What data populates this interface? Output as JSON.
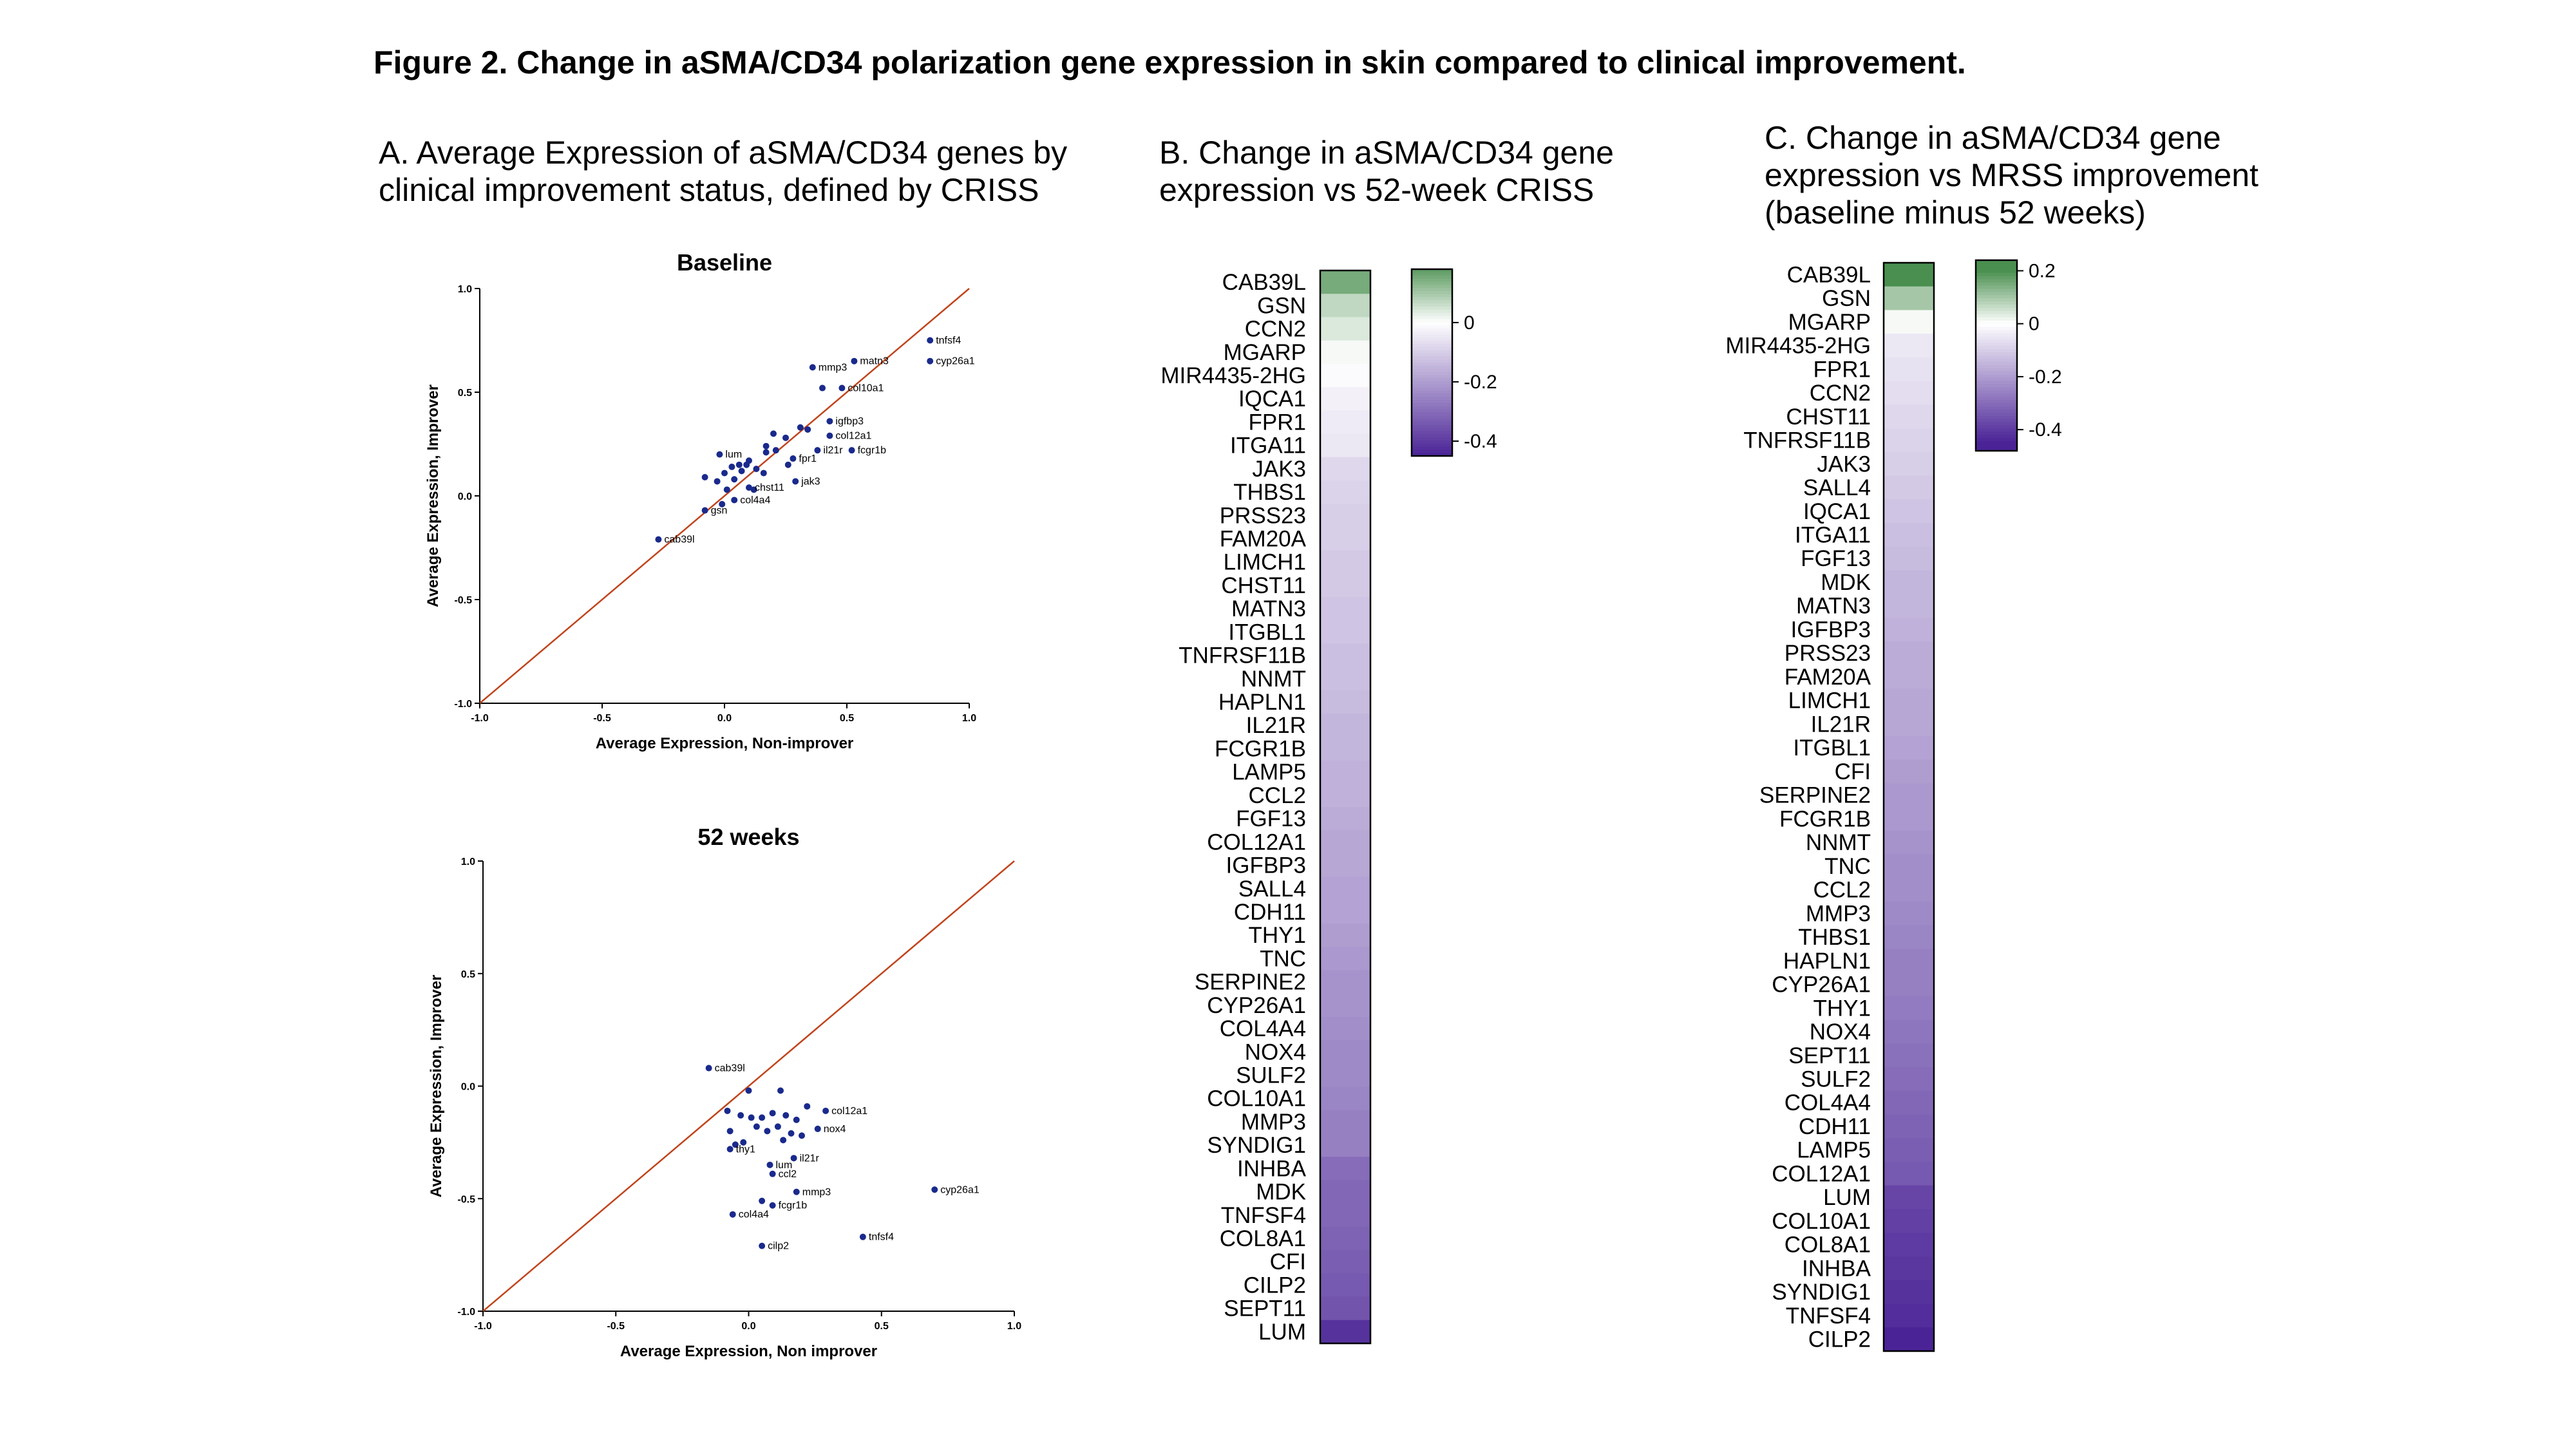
{
  "figure_title": "Figure 2. Change in aSMA/CD34 polarization gene expression in skin compared to clinical improvement.",
  "panels": {
    "A": {
      "title": "A. Average Expression of aSMA/CD34 genes by\nclinical improvement status, defined by CRISS"
    },
    "B": {
      "title": "B. Change in aSMA/CD34 gene\nexpression vs 52-week CRISS"
    },
    "C": {
      "title": "C. Change in aSMA/CD34 gene\nexpression vs MRSS improvement\n(baseline minus 52 weeks)"
    }
  },
  "colors": {
    "point": "#1a2a8c",
    "identity_line": "#c0441c",
    "low": "#4a2396",
    "mid": "#ffffff",
    "high": "#4a8f4f"
  },
  "chart_data": [
    {
      "type": "scatter",
      "title": "Baseline",
      "xlabel": "Average Expression, Non-improver",
      "ylabel": "Average Expression, Improver",
      "xlim": [
        -1.0,
        1.0
      ],
      "ylim": [
        -1.0,
        1.0
      ],
      "xticks": [
        "-1.0",
        "-0.5",
        "0.0",
        "0.5",
        "1.0"
      ],
      "yticks": [
        "-1.0",
        "-0.5",
        "0.0",
        "0.5",
        "1.0"
      ],
      "identity_line": true,
      "labeled_points": [
        {
          "x": 0.84,
          "y": 0.75,
          "label": "tnfsf4"
        },
        {
          "x": 0.84,
          "y": 0.65,
          "label": "cyp26a1"
        },
        {
          "x": 0.53,
          "y": 0.65,
          "label": "matn3"
        },
        {
          "x": 0.36,
          "y": 0.62,
          "label": "mmp3"
        },
        {
          "x": 0.48,
          "y": 0.52,
          "label": "col10a1"
        },
        {
          "x": 0.43,
          "y": 0.36,
          "label": "igfbp3"
        },
        {
          "x": 0.43,
          "y": 0.29,
          "label": "col12a1"
        },
        {
          "x": 0.38,
          "y": 0.22,
          "label": "il21r"
        },
        {
          "x": 0.52,
          "y": 0.22,
          "label": "fcgr1b"
        },
        {
          "x": 0.28,
          "y": 0.18,
          "label": "fpr1"
        },
        {
          "x": -0.02,
          "y": 0.2,
          "label": "lum"
        },
        {
          "x": 0.29,
          "y": 0.07,
          "label": "jak3"
        },
        {
          "x": 0.1,
          "y": 0.04,
          "label": "chst11"
        },
        {
          "x": 0.04,
          "y": -0.02,
          "label": "col4a4"
        },
        {
          "x": -0.08,
          "y": -0.07,
          "label": "gsn"
        },
        {
          "x": -0.27,
          "y": -0.21,
          "label": "cab39l"
        }
      ],
      "points": [
        {
          "x": 0.4,
          "y": 0.52
        },
        {
          "x": 0.34,
          "y": 0.32
        },
        {
          "x": 0.31,
          "y": 0.33
        },
        {
          "x": 0.25,
          "y": 0.28
        },
        {
          "x": 0.17,
          "y": 0.24
        },
        {
          "x": 0.17,
          "y": 0.21
        },
        {
          "x": 0.1,
          "y": 0.17
        },
        {
          "x": 0.09,
          "y": 0.15
        },
        {
          "x": 0.13,
          "y": 0.13
        },
        {
          "x": 0.16,
          "y": 0.11
        },
        {
          "x": 0.07,
          "y": 0.12
        },
        {
          "x": 0.03,
          "y": 0.14
        },
        {
          "x": 0.0,
          "y": 0.11
        },
        {
          "x": 0.04,
          "y": 0.08
        },
        {
          "x": -0.03,
          "y": 0.07
        },
        {
          "x": -0.08,
          "y": 0.09
        },
        {
          "x": 0.01,
          "y": 0.03
        },
        {
          "x": -0.01,
          "y": -0.04
        },
        {
          "x": 0.06,
          "y": 0.15
        },
        {
          "x": 0.21,
          "y": 0.22
        },
        {
          "x": 0.26,
          "y": 0.15
        },
        {
          "x": 0.2,
          "y": 0.3
        },
        {
          "x": 0.12,
          "y": 0.03
        }
      ]
    },
    {
      "type": "scatter",
      "title": "52 weeks",
      "xlabel": "Average Expression, Non improver",
      "ylabel": "Average Expression, Improver",
      "xlim": [
        -1.0,
        1.0
      ],
      "ylim": [
        -1.0,
        1.0
      ],
      "xticks": [
        "-1.0",
        "-0.5",
        "0.0",
        "0.5",
        "1.0"
      ],
      "yticks": [
        "-1.0",
        "-0.5",
        "0.0",
        "0.5",
        "1.0"
      ],
      "identity_line": true,
      "labeled_points": [
        {
          "x": -0.15,
          "y": 0.08,
          "label": "cab39l"
        },
        {
          "x": 0.29,
          "y": -0.11,
          "label": "col12a1"
        },
        {
          "x": 0.26,
          "y": -0.19,
          "label": "nox4"
        },
        {
          "x": 0.17,
          "y": -0.32,
          "label": "il21r"
        },
        {
          "x": -0.07,
          "y": -0.28,
          "label": "thy1"
        },
        {
          "x": 0.08,
          "y": -0.35,
          "label": "lum"
        },
        {
          "x": 0.09,
          "y": -0.39,
          "label": "ccl2"
        },
        {
          "x": 0.18,
          "y": -0.47,
          "label": "mmp3"
        },
        {
          "x": 0.7,
          "y": -0.46,
          "label": "cyp26a1"
        },
        {
          "x": 0.09,
          "y": -0.53,
          "label": "fcgr1b"
        },
        {
          "x": -0.06,
          "y": -0.57,
          "label": "col4a4"
        },
        {
          "x": 0.43,
          "y": -0.67,
          "label": "tnfsf4"
        },
        {
          "x": 0.05,
          "y": -0.71,
          "label": "cilp2"
        }
      ],
      "points": [
        {
          "x": 0.0,
          "y": -0.02
        },
        {
          "x": 0.12,
          "y": -0.02
        },
        {
          "x": -0.08,
          "y": -0.11
        },
        {
          "x": -0.03,
          "y": -0.13
        },
        {
          "x": 0.01,
          "y": -0.14
        },
        {
          "x": 0.05,
          "y": -0.14
        },
        {
          "x": 0.09,
          "y": -0.12
        },
        {
          "x": 0.14,
          "y": -0.13
        },
        {
          "x": 0.18,
          "y": -0.15
        },
        {
          "x": 0.22,
          "y": -0.09
        },
        {
          "x": -0.07,
          "y": -0.2
        },
        {
          "x": 0.03,
          "y": -0.18
        },
        {
          "x": 0.07,
          "y": -0.2
        },
        {
          "x": 0.11,
          "y": -0.18
        },
        {
          "x": 0.16,
          "y": -0.21
        },
        {
          "x": 0.2,
          "y": -0.22
        },
        {
          "x": -0.02,
          "y": -0.25
        },
        {
          "x": -0.05,
          "y": -0.26
        },
        {
          "x": 0.05,
          "y": -0.51
        },
        {
          "x": 0.13,
          "y": -0.24
        }
      ]
    },
    {
      "type": "heatmap",
      "colorbar": {
        "ticks": [
          "0",
          "-0.2",
          "-0.4"
        ],
        "tick_values": [
          0,
          -0.2,
          -0.4
        ],
        "range": [
          -0.45,
          0.18
        ]
      },
      "rows": [
        {
          "gene": "CAB39L",
          "value": 0.15
        },
        {
          "gene": "GSN",
          "value": 0.07
        },
        {
          "gene": "CCN2",
          "value": 0.04
        },
        {
          "gene": "MGARP",
          "value": 0.01
        },
        {
          "gene": "MIR4435-2HG",
          "value": -0.01
        },
        {
          "gene": "IQCA1",
          "value": -0.03
        },
        {
          "gene": "FPR1",
          "value": -0.04
        },
        {
          "gene": "ITGA11",
          "value": -0.05
        },
        {
          "gene": "JAK3",
          "value": -0.08
        },
        {
          "gene": "THBS1",
          "value": -0.09
        },
        {
          "gene": "PRSS23",
          "value": -0.1
        },
        {
          "gene": "FAM20A",
          "value": -0.1
        },
        {
          "gene": "LIMCH1",
          "value": -0.11
        },
        {
          "gene": "CHST11",
          "value": -0.11
        },
        {
          "gene": "MATN3",
          "value": -0.12
        },
        {
          "gene": "ITGBL1",
          "value": -0.12
        },
        {
          "gene": "TNFRSF11B",
          "value": -0.13
        },
        {
          "gene": "NNMT",
          "value": -0.13
        },
        {
          "gene": "HAPLN1",
          "value": -0.14
        },
        {
          "gene": "IL21R",
          "value": -0.15
        },
        {
          "gene": "FCGR1B",
          "value": -0.15
        },
        {
          "gene": "LAMP5",
          "value": -0.16
        },
        {
          "gene": "CCL2",
          "value": -0.16
        },
        {
          "gene": "FGF13",
          "value": -0.17
        },
        {
          "gene": "COL12A1",
          "value": -0.18
        },
        {
          "gene": "IGFBP3",
          "value": -0.18
        },
        {
          "gene": "SALL4",
          "value": -0.19
        },
        {
          "gene": "CDH11",
          "value": -0.19
        },
        {
          "gene": "THY1",
          "value": -0.2
        },
        {
          "gene": "TNC",
          "value": -0.21
        },
        {
          "gene": "SERPINE2",
          "value": -0.22
        },
        {
          "gene": "CYP26A1",
          "value": -0.22
        },
        {
          "gene": "COL4A4",
          "value": -0.23
        },
        {
          "gene": "NOX4",
          "value": -0.24
        },
        {
          "gene": "SULF2",
          "value": -0.24
        },
        {
          "gene": "COL10A1",
          "value": -0.25
        },
        {
          "gene": "MMP3",
          "value": -0.26
        },
        {
          "gene": "SYNDIG1",
          "value": -0.26
        },
        {
          "gene": "INHBA",
          "value": -0.3
        },
        {
          "gene": "MDK",
          "value": -0.31
        },
        {
          "gene": "TNFSF4",
          "value": -0.31
        },
        {
          "gene": "COL8A1",
          "value": -0.32
        },
        {
          "gene": "CFI",
          "value": -0.33
        },
        {
          "gene": "CILP2",
          "value": -0.34
        },
        {
          "gene": "SEPT11",
          "value": -0.35
        },
        {
          "gene": "LUM",
          "value": -0.42
        }
      ]
    },
    {
      "type": "heatmap",
      "colorbar": {
        "ticks": [
          "0.2",
          "0",
          "-0.2",
          "-0.4"
        ],
        "tick_values": [
          0.2,
          0,
          -0.2,
          -0.4
        ],
        "range": [
          -0.48,
          0.24
        ]
      },
      "rows": [
        {
          "gene": "CAB39L",
          "value": 0.22
        },
        {
          "gene": "GSN",
          "value": 0.1
        },
        {
          "gene": "MGARP",
          "value": 0.01
        },
        {
          "gene": "MIR4435-2HG",
          "value": -0.05
        },
        {
          "gene": "FPR1",
          "value": -0.06
        },
        {
          "gene": "CCN2",
          "value": -0.07
        },
        {
          "gene": "CHST11",
          "value": -0.08
        },
        {
          "gene": "TNFRSF11B",
          "value": -0.09
        },
        {
          "gene": "JAK3",
          "value": -0.1
        },
        {
          "gene": "SALL4",
          "value": -0.11
        },
        {
          "gene": "IQCA1",
          "value": -0.12
        },
        {
          "gene": "ITGA11",
          "value": -0.13
        },
        {
          "gene": "FGF13",
          "value": -0.14
        },
        {
          "gene": "MDK",
          "value": -0.15
        },
        {
          "gene": "MATN3",
          "value": -0.15
        },
        {
          "gene": "IGFBP3",
          "value": -0.16
        },
        {
          "gene": "PRSS23",
          "value": -0.17
        },
        {
          "gene": "FAM20A",
          "value": -0.17
        },
        {
          "gene": "LIMCH1",
          "value": -0.18
        },
        {
          "gene": "IL21R",
          "value": -0.18
        },
        {
          "gene": "ITGBL1",
          "value": -0.19
        },
        {
          "gene": "CFI",
          "value": -0.2
        },
        {
          "gene": "SERPINE2",
          "value": -0.21
        },
        {
          "gene": "FCGR1B",
          "value": -0.21
        },
        {
          "gene": "NNMT",
          "value": -0.22
        },
        {
          "gene": "TNC",
          "value": -0.23
        },
        {
          "gene": "CCL2",
          "value": -0.23
        },
        {
          "gene": "MMP3",
          "value": -0.24
        },
        {
          "gene": "THBS1",
          "value": -0.25
        },
        {
          "gene": "HAPLN1",
          "value": -0.26
        },
        {
          "gene": "CYP26A1",
          "value": -0.26
        },
        {
          "gene": "THY1",
          "value": -0.27
        },
        {
          "gene": "NOX4",
          "value": -0.28
        },
        {
          "gene": "SEPT11",
          "value": -0.29
        },
        {
          "gene": "SULF2",
          "value": -0.3
        },
        {
          "gene": "COL4A4",
          "value": -0.31
        },
        {
          "gene": "CDH11",
          "value": -0.32
        },
        {
          "gene": "LAMP5",
          "value": -0.33
        },
        {
          "gene": "COL12A1",
          "value": -0.34
        },
        {
          "gene": "LUM",
          "value": -0.38
        },
        {
          "gene": "COL10A1",
          "value": -0.39
        },
        {
          "gene": "COL8A1",
          "value": -0.4
        },
        {
          "gene": "INHBA",
          "value": -0.41
        },
        {
          "gene": "SYNDIG1",
          "value": -0.42
        },
        {
          "gene": "TNFSF4",
          "value": -0.43
        },
        {
          "gene": "CILP2",
          "value": -0.45
        }
      ]
    }
  ]
}
